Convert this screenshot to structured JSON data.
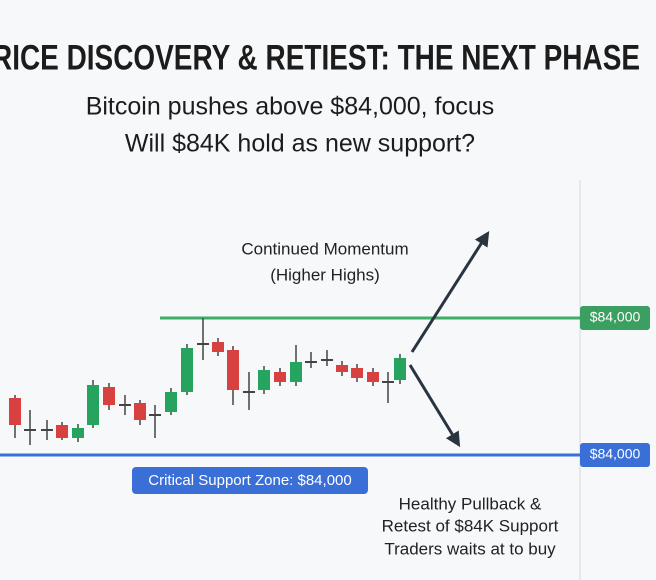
{
  "header": {
    "title": "RICE DISCOVERY & RETIEST: THE NEXT PHASE",
    "subtitle": [
      "Bitcoin pushes above $84,000, focus",
      "Will $84K hold as new support?"
    ]
  },
  "annotations": {
    "momentum": [
      "Continued Momentum",
      "(Higher Highs)"
    ],
    "pullback": [
      "Healthy Pullback &",
      "Retest of $84K Support",
      "Traders waits at to buy"
    ]
  },
  "levels": {
    "resistance_label": "$84,000",
    "support_label": "$84,000",
    "support_zone": "Critical Support Zone: $84,000"
  }
}
